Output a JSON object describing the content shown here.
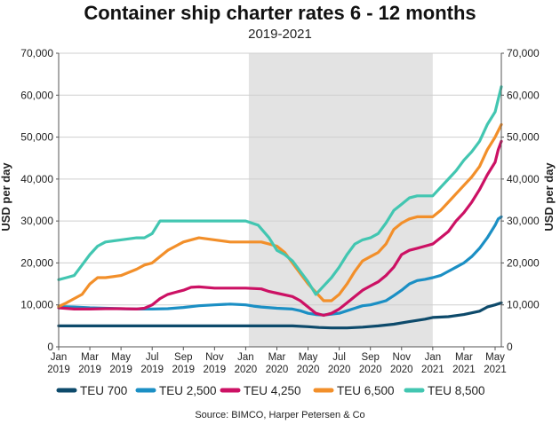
{
  "chart_data": {
    "type": "line",
    "title": "Container ship charter rates 6 - 12 months",
    "subtitle": "2019-2021",
    "ylabel": "USD per day",
    "ylabel_right": "USD per day",
    "source": "Source: BIMCO, Harper Petersen & Co",
    "ylim": [
      0,
      70000
    ],
    "yticks": [
      "0",
      "10,000",
      "20,000",
      "30,000",
      "40,000",
      "50,000",
      "60,000",
      "70,000"
    ],
    "xticks": [
      {
        "t": 0,
        "line1": "Jan",
        "line2": "2019"
      },
      {
        "t": 2,
        "line1": "Mar",
        "line2": "2019"
      },
      {
        "t": 4,
        "line1": "May",
        "line2": "2019"
      },
      {
        "t": 6,
        "line1": "Jul",
        "line2": "2019"
      },
      {
        "t": 8,
        "line1": "Sep",
        "line2": "2019"
      },
      {
        "t": 10,
        "line1": "Nov",
        "line2": "2019"
      },
      {
        "t": 12,
        "line1": "Jan",
        "line2": "2020"
      },
      {
        "t": 14,
        "line1": "Mar",
        "line2": "2020"
      },
      {
        "t": 16,
        "line1": "May",
        "line2": "2020"
      },
      {
        "t": 18,
        "line1": "Jul",
        "line2": "2020"
      },
      {
        "t": 20,
        "line1": "Sep",
        "line2": "2020"
      },
      {
        "t": 22,
        "line1": "Nov",
        "line2": "2020"
      },
      {
        "t": 24,
        "line1": "Jan",
        "line2": "2021"
      },
      {
        "t": 26,
        "line1": "Mar",
        "line2": "2021"
      },
      {
        "t": 28,
        "line1": "May",
        "line2": "2021"
      }
    ],
    "xlim": [
      0,
      28.4
    ],
    "shaded_region": [
      12.2,
      24
    ],
    "grid": true,
    "legend_position": "bottom",
    "series": [
      {
        "name": "TEU 700",
        "color": "#0d4a6b",
        "points": [
          [
            0,
            5000
          ],
          [
            2,
            5000
          ],
          [
            4,
            5000
          ],
          [
            6,
            5000
          ],
          [
            8,
            5000
          ],
          [
            10,
            5000
          ],
          [
            12,
            5000
          ],
          [
            13,
            5000
          ],
          [
            14,
            5000
          ],
          [
            15,
            5000
          ],
          [
            16,
            4800
          ],
          [
            16.7,
            4600
          ],
          [
            17.5,
            4500
          ],
          [
            18.5,
            4500
          ],
          [
            19.5,
            4700
          ],
          [
            20.5,
            5000
          ],
          [
            21.5,
            5400
          ],
          [
            22.5,
            6000
          ],
          [
            23.5,
            6600
          ],
          [
            24,
            7000
          ],
          [
            25,
            7200
          ],
          [
            26,
            7700
          ],
          [
            27,
            8500
          ],
          [
            27.5,
            9500
          ],
          [
            28,
            10000
          ],
          [
            28.4,
            10500
          ]
        ]
      },
      {
        "name": "TEU 2,500",
        "color": "#1b8fc4",
        "points": [
          [
            0,
            9600
          ],
          [
            1,
            9500
          ],
          [
            2,
            9300
          ],
          [
            3,
            9200
          ],
          [
            4,
            9100
          ],
          [
            5,
            9000
          ],
          [
            6,
            9000
          ],
          [
            7,
            9100
          ],
          [
            8,
            9400
          ],
          [
            9,
            9800
          ],
          [
            10,
            10000
          ],
          [
            11,
            10200
          ],
          [
            12,
            10000
          ],
          [
            12.5,
            9700
          ],
          [
            13,
            9500
          ],
          [
            14,
            9200
          ],
          [
            15,
            9000
          ],
          [
            15.5,
            8600
          ],
          [
            16,
            8000
          ],
          [
            16.5,
            7700
          ],
          [
            17,
            7600
          ],
          [
            17.5,
            7800
          ],
          [
            18,
            8000
          ],
          [
            18.5,
            8600
          ],
          [
            19,
            9200
          ],
          [
            19.5,
            9800
          ],
          [
            20,
            10000
          ],
          [
            20.5,
            10500
          ],
          [
            21,
            11000
          ],
          [
            21.5,
            12200
          ],
          [
            22,
            13500
          ],
          [
            22.5,
            15000
          ],
          [
            23,
            15800
          ],
          [
            23.5,
            16100
          ],
          [
            24,
            16500
          ],
          [
            24.5,
            17000
          ],
          [
            25,
            18000
          ],
          [
            25.5,
            19000
          ],
          [
            26,
            20000
          ],
          [
            26.5,
            21500
          ],
          [
            27,
            23500
          ],
          [
            27.5,
            26000
          ],
          [
            28,
            29000
          ],
          [
            28.2,
            30500
          ],
          [
            28.4,
            31000
          ]
        ]
      },
      {
        "name": "TEU 4,250",
        "color": "#cc1164",
        "points": [
          [
            0,
            9300
          ],
          [
            1,
            9000
          ],
          [
            2,
            9000
          ],
          [
            3,
            9100
          ],
          [
            4,
            9100
          ],
          [
            5,
            9000
          ],
          [
            5.5,
            9200
          ],
          [
            6,
            10000
          ],
          [
            6.5,
            11500
          ],
          [
            7,
            12500
          ],
          [
            7.5,
            13000
          ],
          [
            8,
            13500
          ],
          [
            8.5,
            14200
          ],
          [
            9,
            14300
          ],
          [
            10,
            14000
          ],
          [
            11,
            14000
          ],
          [
            12,
            14000
          ],
          [
            13,
            13800
          ],
          [
            13.5,
            13200
          ],
          [
            14,
            12800
          ],
          [
            15,
            12000
          ],
          [
            15.5,
            11000
          ],
          [
            16,
            9500
          ],
          [
            16.5,
            8000
          ],
          [
            17,
            7500
          ],
          [
            17.5,
            8000
          ],
          [
            18,
            9000
          ],
          [
            18.5,
            10500
          ],
          [
            19,
            12000
          ],
          [
            19.5,
            13500
          ],
          [
            20,
            14500
          ],
          [
            20.5,
            15500
          ],
          [
            21,
            17000
          ],
          [
            21.5,
            19000
          ],
          [
            22,
            22000
          ],
          [
            22.5,
            23000
          ],
          [
            23,
            23500
          ],
          [
            23.5,
            24000
          ],
          [
            24,
            24500
          ],
          [
            24.5,
            26000
          ],
          [
            25,
            27500
          ],
          [
            25.5,
            30000
          ],
          [
            26,
            32000
          ],
          [
            26.5,
            34500
          ],
          [
            27,
            37500
          ],
          [
            27.5,
            41000
          ],
          [
            28,
            44000
          ],
          [
            28.2,
            47000
          ],
          [
            28.4,
            49000
          ]
        ]
      },
      {
        "name": "TEU 6,500",
        "color": "#f28f2a",
        "points": [
          [
            0,
            9600
          ],
          [
            0.5,
            10500
          ],
          [
            1,
            11500
          ],
          [
            1.5,
            12500
          ],
          [
            2,
            15000
          ],
          [
            2.5,
            16500
          ],
          [
            3,
            16500
          ],
          [
            4,
            17000
          ],
          [
            5,
            18500
          ],
          [
            5.5,
            19500
          ],
          [
            6,
            20000
          ],
          [
            6.5,
            21500
          ],
          [
            7,
            23000
          ],
          [
            7.5,
            24000
          ],
          [
            8,
            25000
          ],
          [
            8.5,
            25500
          ],
          [
            9,
            26000
          ],
          [
            10,
            25500
          ],
          [
            11,
            25000
          ],
          [
            12,
            25000
          ],
          [
            13,
            25000
          ],
          [
            13.5,
            24500
          ],
          [
            14,
            24000
          ],
          [
            14.5,
            22500
          ],
          [
            15,
            20000
          ],
          [
            15.5,
            17500
          ],
          [
            16,
            15000
          ],
          [
            16.5,
            13000
          ],
          [
            17,
            11000
          ],
          [
            17.5,
            11000
          ],
          [
            18,
            12500
          ],
          [
            18.5,
            15000
          ],
          [
            19,
            18000
          ],
          [
            19.5,
            20500
          ],
          [
            20,
            21500
          ],
          [
            20.5,
            22500
          ],
          [
            21,
            24500
          ],
          [
            21.5,
            28000
          ],
          [
            22,
            29500
          ],
          [
            22.5,
            30500
          ],
          [
            23,
            31000
          ],
          [
            24,
            31000
          ],
          [
            24.5,
            32500
          ],
          [
            25,
            34500
          ],
          [
            25.5,
            36500
          ],
          [
            26,
            38500
          ],
          [
            26.5,
            40500
          ],
          [
            27,
            43000
          ],
          [
            27.5,
            47000
          ],
          [
            28,
            50000
          ],
          [
            28.2,
            51500
          ],
          [
            28.4,
            53000
          ]
        ]
      },
      {
        "name": "TEU 8,500",
        "color": "#42c6b1",
        "points": [
          [
            0,
            16000
          ],
          [
            0.5,
            16500
          ],
          [
            1,
            17000
          ],
          [
            1.5,
            19500
          ],
          [
            2,
            22000
          ],
          [
            2.5,
            24000
          ],
          [
            3,
            25000
          ],
          [
            4,
            25500
          ],
          [
            5,
            26000
          ],
          [
            5.5,
            26000
          ],
          [
            6,
            27000
          ],
          [
            6.5,
            30000
          ],
          [
            7,
            30000
          ],
          [
            9,
            30000
          ],
          [
            11,
            30000
          ],
          [
            12,
            30000
          ],
          [
            12.8,
            29000
          ],
          [
            13.5,
            26000
          ],
          [
            14,
            23000
          ],
          [
            14.5,
            22000
          ],
          [
            15,
            20500
          ],
          [
            15.5,
            18000
          ],
          [
            16,
            15500
          ],
          [
            16.5,
            12500
          ],
          [
            17,
            14500
          ],
          [
            17.5,
            16500
          ],
          [
            18,
            19000
          ],
          [
            18.5,
            22000
          ],
          [
            19,
            24500
          ],
          [
            19.5,
            25500
          ],
          [
            20,
            26000
          ],
          [
            20.5,
            27000
          ],
          [
            21,
            29500
          ],
          [
            21.5,
            32500
          ],
          [
            22,
            34000
          ],
          [
            22.5,
            35500
          ],
          [
            23,
            36000
          ],
          [
            24,
            36000
          ],
          [
            24.5,
            38000
          ],
          [
            25,
            40000
          ],
          [
            25.5,
            42000
          ],
          [
            26,
            44500
          ],
          [
            26.5,
            46500
          ],
          [
            27,
            49000
          ],
          [
            27.5,
            53000
          ],
          [
            28,
            56000
          ],
          [
            28.2,
            59000
          ],
          [
            28.4,
            62000
          ]
        ]
      }
    ]
  }
}
